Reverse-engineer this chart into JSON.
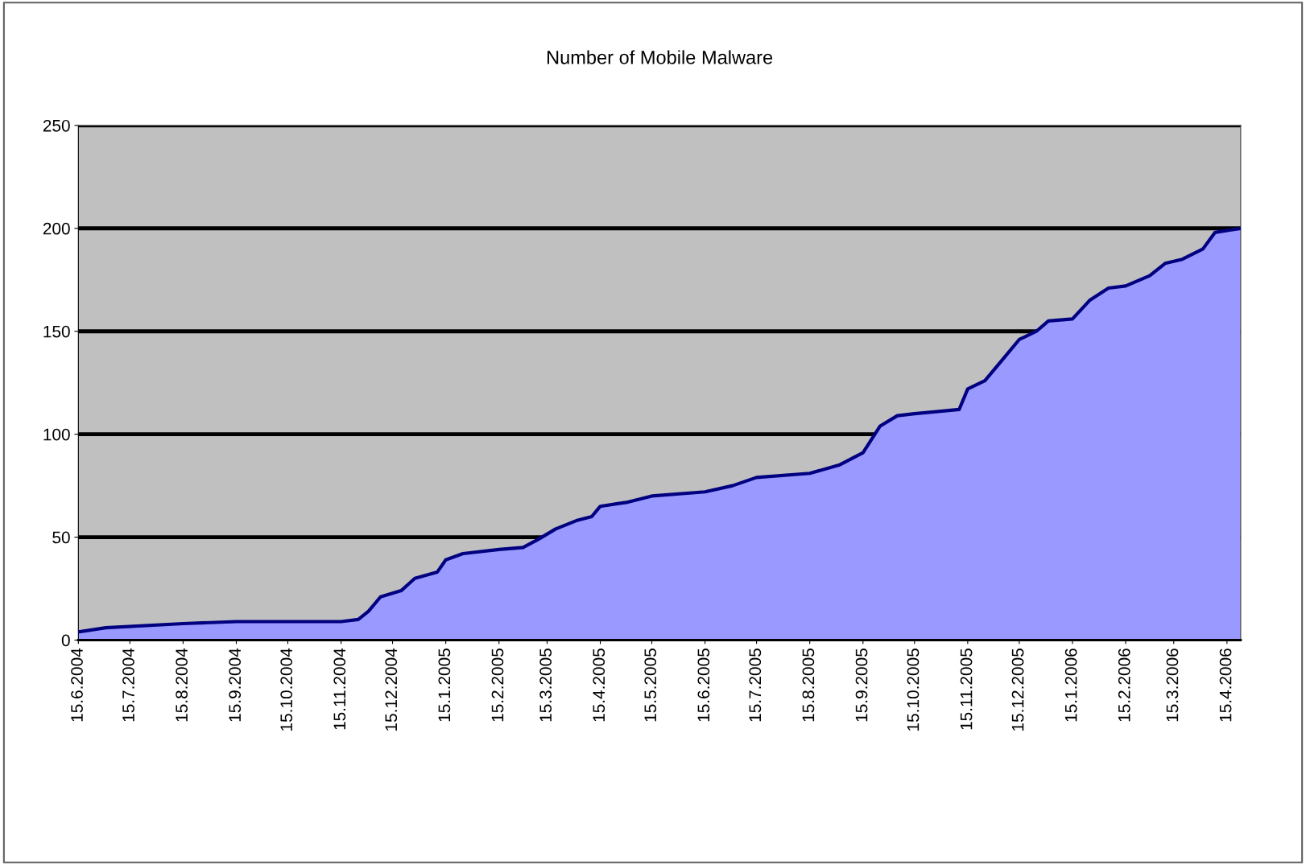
{
  "chart_data": {
    "type": "area",
    "title": "Number of Mobile Malware",
    "x": [
      "2004-06-15",
      "2004-07-01",
      "2004-08-15",
      "2004-09-15",
      "2004-10-15",
      "2004-11-15",
      "2004-11-25",
      "2004-12-01",
      "2004-12-08",
      "2004-12-20",
      "2004-12-28",
      "2005-01-10",
      "2005-01-15",
      "2005-01-25",
      "2005-02-15",
      "2005-03-01",
      "2005-03-10",
      "2005-03-20",
      "2005-04-01",
      "2005-04-10",
      "2005-04-15",
      "2005-05-01",
      "2005-05-15",
      "2005-06-15",
      "2005-07-01",
      "2005-07-15",
      "2005-08-15",
      "2005-09-01",
      "2005-09-15",
      "2005-09-25",
      "2005-10-05",
      "2005-10-15",
      "2005-11-10",
      "2005-11-15",
      "2005-11-25",
      "2005-12-05",
      "2005-12-15",
      "2005-12-25",
      "2006-01-01",
      "2006-01-15",
      "2006-01-25",
      "2006-02-05",
      "2006-02-15",
      "2006-03-01",
      "2006-03-10",
      "2006-03-20",
      "2006-04-01",
      "2006-04-08",
      "2006-04-23"
    ],
    "series": [
      {
        "color": "#9999ff",
        "values": [
          4,
          6,
          8,
          9,
          9,
          9,
          10,
          14,
          21,
          24,
          30,
          33,
          39,
          42,
          44,
          45,
          49,
          54,
          58,
          60,
          65,
          67,
          70,
          72,
          75,
          79,
          81,
          85,
          91,
          104,
          109,
          110,
          112,
          122,
          126,
          136,
          146,
          150,
          155,
          156,
          165,
          171,
          172,
          177,
          183,
          185,
          190,
          198,
          200
        ]
      }
    ],
    "xlim": [
      "2004-06-15",
      "2006-04-23"
    ],
    "xticks": [
      {
        "value": "2004-06-15",
        "label": "15.6.2004"
      },
      {
        "value": "2004-07-15",
        "label": "15.7.2004"
      },
      {
        "value": "2004-08-15",
        "label": "15.8.2004"
      },
      {
        "value": "2004-09-15",
        "label": "15.9.2004"
      },
      {
        "value": "2004-10-15",
        "label": "15.10.2004"
      },
      {
        "value": "2004-11-15",
        "label": "15.11.2004"
      },
      {
        "value": "2004-12-15",
        "label": "15.12.2004"
      },
      {
        "value": "2005-01-15",
        "label": "15.1.2005"
      },
      {
        "value": "2005-02-15",
        "label": "15.2.2005"
      },
      {
        "value": "2005-03-15",
        "label": "15.3.2005"
      },
      {
        "value": "2005-04-15",
        "label": "15.4.2005"
      },
      {
        "value": "2005-05-15",
        "label": "15.5.2005"
      },
      {
        "value": "2005-06-15",
        "label": "15.6.2005"
      },
      {
        "value": "2005-07-15",
        "label": "15.7.2005"
      },
      {
        "value": "2005-08-15",
        "label": "15.8.2005"
      },
      {
        "value": "2005-09-15",
        "label": "15.9.2005"
      },
      {
        "value": "2005-10-15",
        "label": "15.10.2005"
      },
      {
        "value": "2005-11-15",
        "label": "15.11.2005"
      },
      {
        "value": "2005-12-15",
        "label": "15.12.2005"
      },
      {
        "value": "2006-01-15",
        "label": "15.1.2006"
      },
      {
        "value": "2006-02-15",
        "label": "15.2.2006"
      },
      {
        "value": "2006-03-15",
        "label": "15.3.2006"
      },
      {
        "value": "2006-04-15",
        "label": "15.4.2006"
      }
    ],
    "ylim": [
      0,
      250
    ],
    "yticks": [
      0,
      50,
      100,
      150,
      200,
      250
    ],
    "grid": "y",
    "legend": false
  }
}
